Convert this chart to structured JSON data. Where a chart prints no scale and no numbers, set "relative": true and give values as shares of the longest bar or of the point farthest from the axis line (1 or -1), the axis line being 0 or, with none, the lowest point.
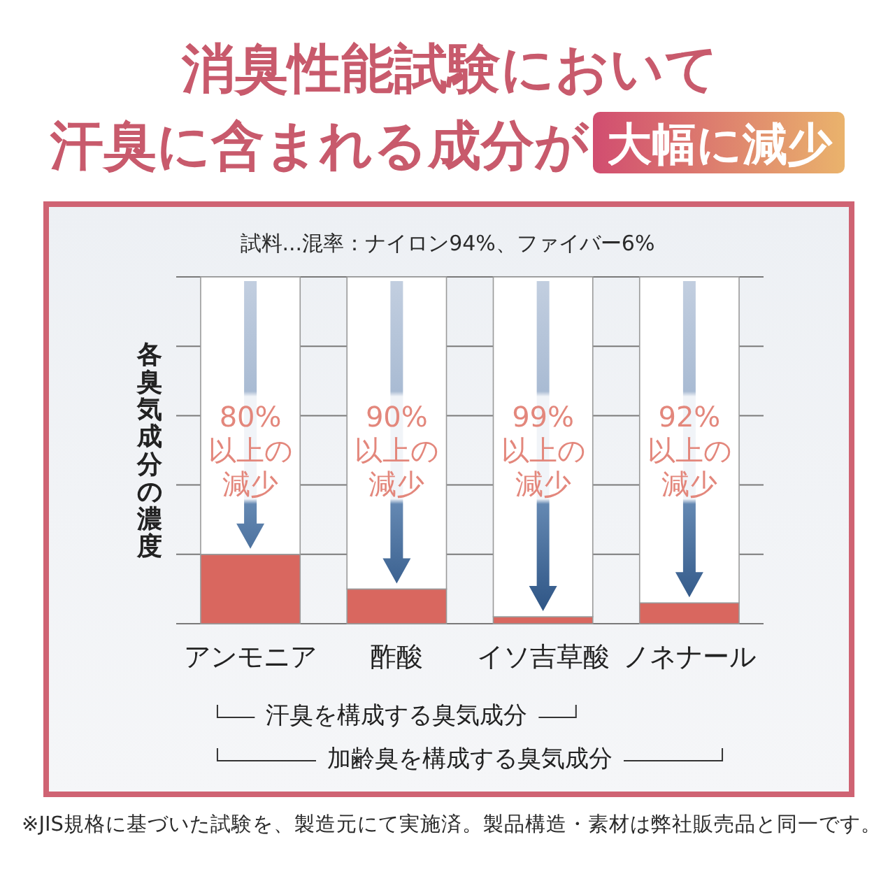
{
  "chart_data": {
    "type": "bar",
    "title": "消臭性能試験において汗臭に含まれる成分が大幅に減少",
    "subtitle": "試料...混率：ナイロン94%、ファイバー6%",
    "ylabel": "各臭気成分の濃度",
    "categories": [
      "アンモニア",
      "酢酸",
      "イソ吉草酸",
      "ノネナール"
    ],
    "relative": true,
    "stacked": true,
    "grid": "y",
    "series": [
      {
        "color": "#d9675f",
        "values": [
          0.2,
          0.1,
          0.02,
          0.06
        ]
      },
      {
        "color": "#ffffff",
        "values": [
          0.8,
          0.9,
          0.98,
          0.94
        ]
      }
    ],
    "annotations": [
      "80%以上の減少",
      "90%以上の減少",
      "99%以上の減少",
      "92%以上の減少",
      "汗臭を構成する臭気成分",
      "加齢臭を構成する臭気成分",
      "※JIS規格に基づいた試験を、製造元にて実施済。製品構造・素材は弊社販売品と同一です。"
    ]
  }
}
